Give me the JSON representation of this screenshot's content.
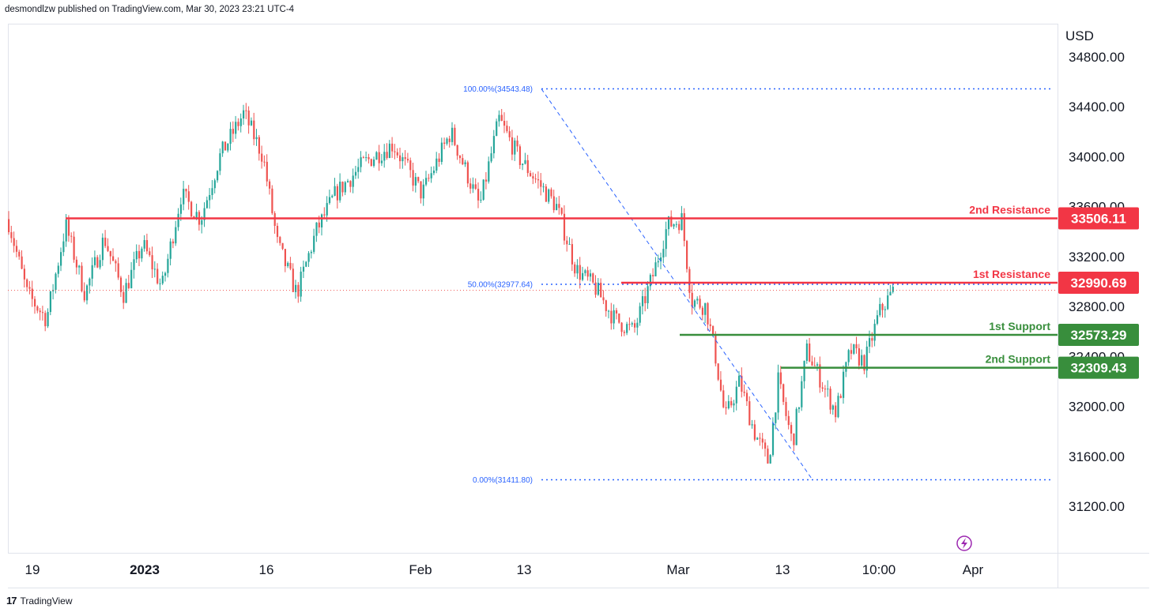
{
  "header": {
    "text": "desmondlzw published on TradingView.com, Mar 30, 2023 23:21 UTC-4"
  },
  "footer": {
    "brand": "TradingView",
    "logo_glyph": "17"
  },
  "colors": {
    "resistance": "#f23645",
    "support": "#388e3c",
    "fib": "#2962ff",
    "candle_up": "#26a69a",
    "candle_down": "#ef5350",
    "grid": "#e0e3eb"
  },
  "chart_data": {
    "type": "candlestick",
    "currency": "USD",
    "y_ticks": [
      31200,
      31600,
      32000,
      32400,
      32800,
      33200,
      33600,
      34000,
      34400,
      34800
    ],
    "y_tick_labels": [
      "31200.00",
      "31600.00",
      "32000.00",
      "32400.00",
      "32800.00",
      "33200.00",
      "33600.00",
      "34000.00",
      "34400.00",
      "34800.00"
    ],
    "x_labels": [
      "19",
      "2023",
      "16",
      "Feb",
      "13",
      "Mar",
      "13",
      "10:00",
      "Apr"
    ],
    "levels": [
      {
        "name": "2nd Resistance",
        "value": 33506.11,
        "label": "33506.11",
        "kind": "resistance"
      },
      {
        "name": "1st Resistance",
        "value": 32990.69,
        "label": "32990.69",
        "kind": "resistance"
      },
      {
        "name": "1st Support",
        "value": 32573.29,
        "label": "32573.29",
        "kind": "support"
      },
      {
        "name": "2nd Support",
        "value": 32309.43,
        "label": "32309.43",
        "kind": "support"
      }
    ],
    "fibonacci": [
      {
        "label": "100.00%(34543.48)",
        "value": 34543.48
      },
      {
        "label": "50.00%(32977.64)",
        "value": 32977.64
      },
      {
        "label": "0.00%(31411.80)",
        "value": 31411.8
      }
    ],
    "last_price": 32930,
    "price_path": [
      {
        "x": 0.0,
        "price": 33500
      },
      {
        "x": 0.02,
        "price": 32900
      },
      {
        "x": 0.04,
        "price": 32700
      },
      {
        "x": 0.06,
        "price": 33450
      },
      {
        "x": 0.08,
        "price": 32900
      },
      {
        "x": 0.1,
        "price": 33350
      },
      {
        "x": 0.12,
        "price": 32900
      },
      {
        "x": 0.14,
        "price": 33300
      },
      {
        "x": 0.16,
        "price": 32950
      },
      {
        "x": 0.18,
        "price": 33700
      },
      {
        "x": 0.2,
        "price": 33500
      },
      {
        "x": 0.22,
        "price": 34000
      },
      {
        "x": 0.245,
        "price": 34350
      },
      {
        "x": 0.265,
        "price": 34000
      },
      {
        "x": 0.28,
        "price": 33300
      },
      {
        "x": 0.3,
        "price": 32900
      },
      {
        "x": 0.32,
        "price": 33400
      },
      {
        "x": 0.34,
        "price": 33700
      },
      {
        "x": 0.37,
        "price": 33950
      },
      {
        "x": 0.4,
        "price": 34100
      },
      {
        "x": 0.43,
        "price": 33700
      },
      {
        "x": 0.46,
        "price": 34200
      },
      {
        "x": 0.49,
        "price": 33600
      },
      {
        "x": 0.51,
        "price": 34300
      },
      {
        "x": 0.53,
        "price": 34000
      },
      {
        "x": 0.55,
        "price": 33800
      },
      {
        "x": 0.57,
        "price": 33600
      },
      {
        "x": 0.59,
        "price": 33100
      },
      {
        "x": 0.61,
        "price": 32950
      },
      {
        "x": 0.63,
        "price": 32700
      },
      {
        "x": 0.65,
        "price": 32600
      },
      {
        "x": 0.67,
        "price": 33050
      },
      {
        "x": 0.685,
        "price": 33450
      },
      {
        "x": 0.7,
        "price": 33500
      },
      {
        "x": 0.71,
        "price": 32850
      },
      {
        "x": 0.725,
        "price": 32800
      },
      {
        "x": 0.735,
        "price": 32400
      },
      {
        "x": 0.745,
        "price": 31900
      },
      {
        "x": 0.76,
        "price": 32200
      },
      {
        "x": 0.775,
        "price": 31800
      },
      {
        "x": 0.79,
        "price": 31550
      },
      {
        "x": 0.8,
        "price": 32200
      },
      {
        "x": 0.815,
        "price": 31700
      },
      {
        "x": 0.83,
        "price": 32450
      },
      {
        "x": 0.845,
        "price": 32200
      },
      {
        "x": 0.86,
        "price": 31950
      },
      {
        "x": 0.875,
        "price": 32450
      },
      {
        "x": 0.89,
        "price": 32350
      },
      {
        "x": 0.905,
        "price": 32750
      },
      {
        "x": 0.92,
        "price": 32930
      }
    ]
  }
}
